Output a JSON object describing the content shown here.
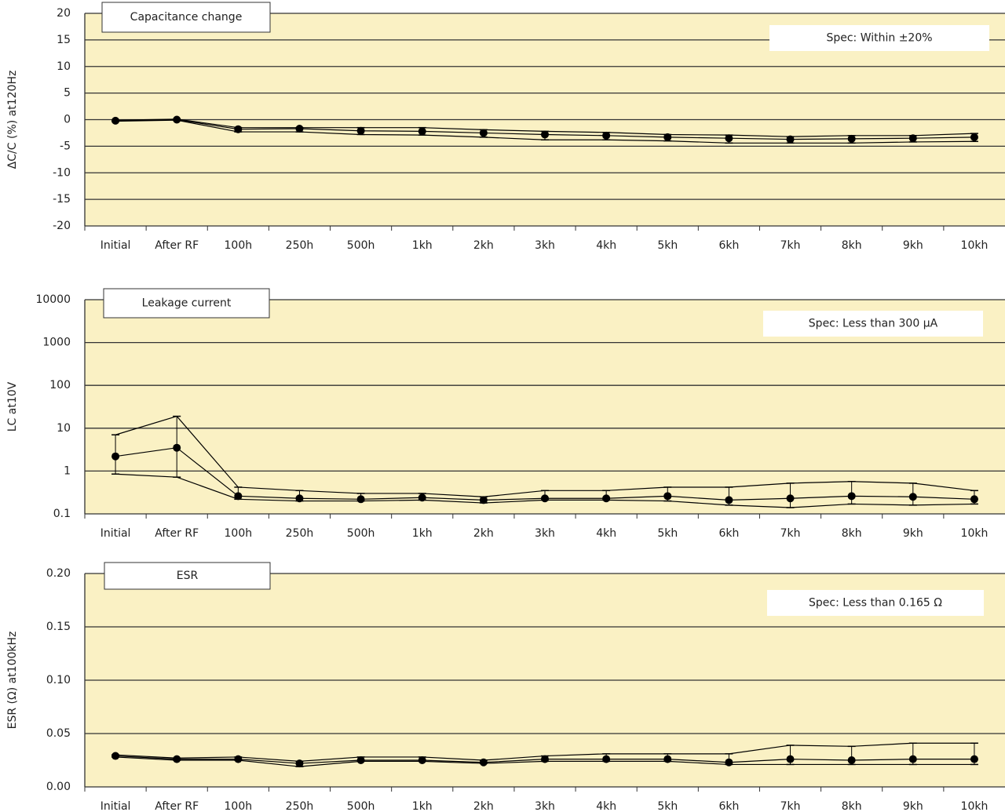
{
  "chart_data": [
    {
      "type": "line",
      "title": "Capacitance change",
      "spec": "Spec: Within ±20%",
      "ylabel": "ΔC/C (%) at120Hz",
      "categories": [
        "Initial",
        "After RF",
        "100h",
        "250h",
        "500h",
        "1kh",
        "2kh",
        "3kh",
        "4kh",
        "5kh",
        "6kh",
        "7kh",
        "8kh",
        "9kh",
        "10kh"
      ],
      "values": [
        -0.2,
        0,
        -1.8,
        -1.7,
        -2.1,
        -2.2,
        -2.5,
        -2.8,
        -3.0,
        -3.3,
        -3.5,
        -3.7,
        -3.6,
        -3.5,
        -3.3
      ],
      "max": [
        -0.1,
        0.1,
        -1.5,
        -1.5,
        -1.5,
        -1.5,
        -1.9,
        -2.2,
        -2.4,
        -2.8,
        -2.9,
        -3.2,
        -3.0,
        -3.0,
        -2.6
      ],
      "min": [
        -0.3,
        -0.1,
        -2.3,
        -2.3,
        -2.8,
        -2.9,
        -3.3,
        -3.8,
        -3.8,
        -4.0,
        -4.4,
        -4.4,
        -4.4,
        -4.2,
        -4.1
      ],
      "color": "#000000",
      "ylim": [
        -20,
        20
      ],
      "yticks": [
        -20,
        -15,
        -10,
        -5,
        0,
        5,
        10,
        15,
        20
      ],
      "grid": true,
      "log_scale": false
    },
    {
      "type": "line",
      "title": "Leakage current",
      "spec": "Spec: Less than 300 μA",
      "ylabel": "LC at10V",
      "categories": [
        "Initial",
        "After RF",
        "100h",
        "250h",
        "500h",
        "1kh",
        "2kh",
        "3kh",
        "4kh",
        "5kh",
        "6kh",
        "7kh",
        "8kh",
        "9kh",
        "10kh"
      ],
      "values": [
        2.2,
        3.5,
        0.26,
        0.23,
        0.22,
        0.24,
        0.21,
        0.23,
        0.23,
        0.26,
        0.21,
        0.23,
        0.26,
        0.25,
        0.22
      ],
      "max": [
        7,
        19,
        0.42,
        0.35,
        0.3,
        0.3,
        0.25,
        0.35,
        0.35,
        0.42,
        0.42,
        0.52,
        0.57,
        0.52,
        0.35
      ],
      "min": [
        0.85,
        0.72,
        0.22,
        0.2,
        0.2,
        0.21,
        0.18,
        0.21,
        0.21,
        0.2,
        0.16,
        0.14,
        0.17,
        0.16,
        0.17
      ],
      "color": "#000000",
      "ylim": [
        0.1,
        10000
      ],
      "yticks": [
        0.1,
        1,
        10,
        100,
        1000,
        10000
      ],
      "grid": true,
      "log_scale": true
    },
    {
      "type": "line",
      "title": "ESR",
      "spec": "Spec: Less than 0.165 Ω",
      "ylabel": "ESR (Ω) at100kHz",
      "categories": [
        "Initial",
        "After RF",
        "100h",
        "250h",
        "500h",
        "1kh",
        "2kh",
        "3kh",
        "4kh",
        "5kh",
        "6kh",
        "7kh",
        "8kh",
        "9kh",
        "10kh"
      ],
      "values": [
        0.029,
        0.026,
        0.026,
        0.022,
        0.025,
        0.025,
        0.023,
        0.026,
        0.026,
        0.026,
        0.023,
        0.026,
        0.025,
        0.026,
        0.026
      ],
      "max": [
        0.03,
        0.027,
        0.028,
        0.024,
        0.028,
        0.028,
        0.025,
        0.029,
        0.031,
        0.031,
        0.031,
        0.039,
        0.038,
        0.041,
        0.041
      ],
      "min": [
        0.028,
        0.025,
        0.025,
        0.019,
        0.024,
        0.024,
        0.022,
        0.024,
        0.024,
        0.024,
        0.021,
        0.021,
        0.021,
        0.021,
        0.021
      ],
      "color": "#000000",
      "ylim": [
        0,
        0.2
      ],
      "yticks": [
        {
          "value": 0,
          "label": "0.00"
        },
        {
          "value": 0.05,
          "label": "0.05"
        },
        {
          "value": 0.1,
          "label": "0.10"
        },
        {
          "value": 0.15,
          "label": "0.15"
        },
        {
          "value": 0.2,
          "label": "0.20"
        }
      ],
      "grid": true,
      "log_scale": false
    }
  ]
}
